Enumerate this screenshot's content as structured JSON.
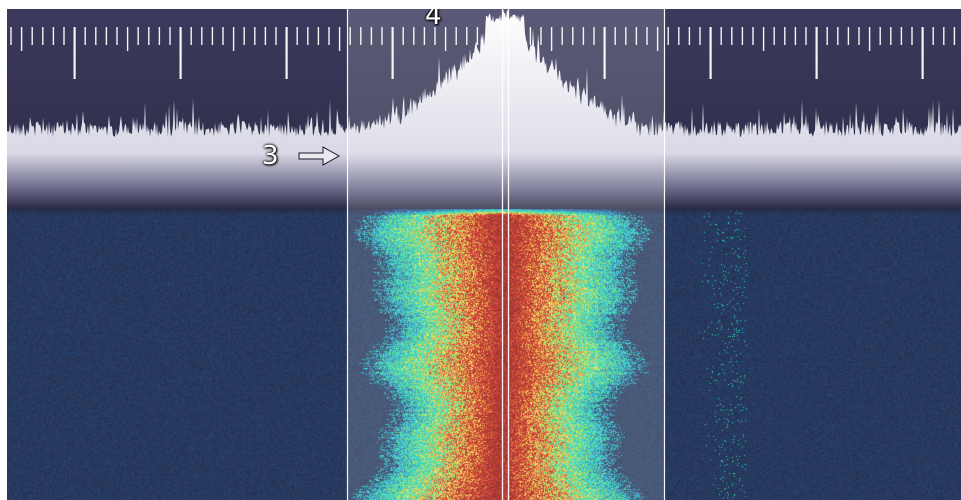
{
  "annotations": {
    "marker_3": "3",
    "marker_4": "4"
  },
  "icons": {
    "marker_3_pointer": "arrow-right-icon"
  },
  "colors": {
    "background": "#28273f",
    "spectrum_fill": "#3c3a5e",
    "scale_ticks": "#ffffff",
    "waterfall_floor": "#26253c",
    "signal_weak": "#16d4d8",
    "signal_mid": "#ffe13c",
    "signal_strong": "#d42616"
  }
}
